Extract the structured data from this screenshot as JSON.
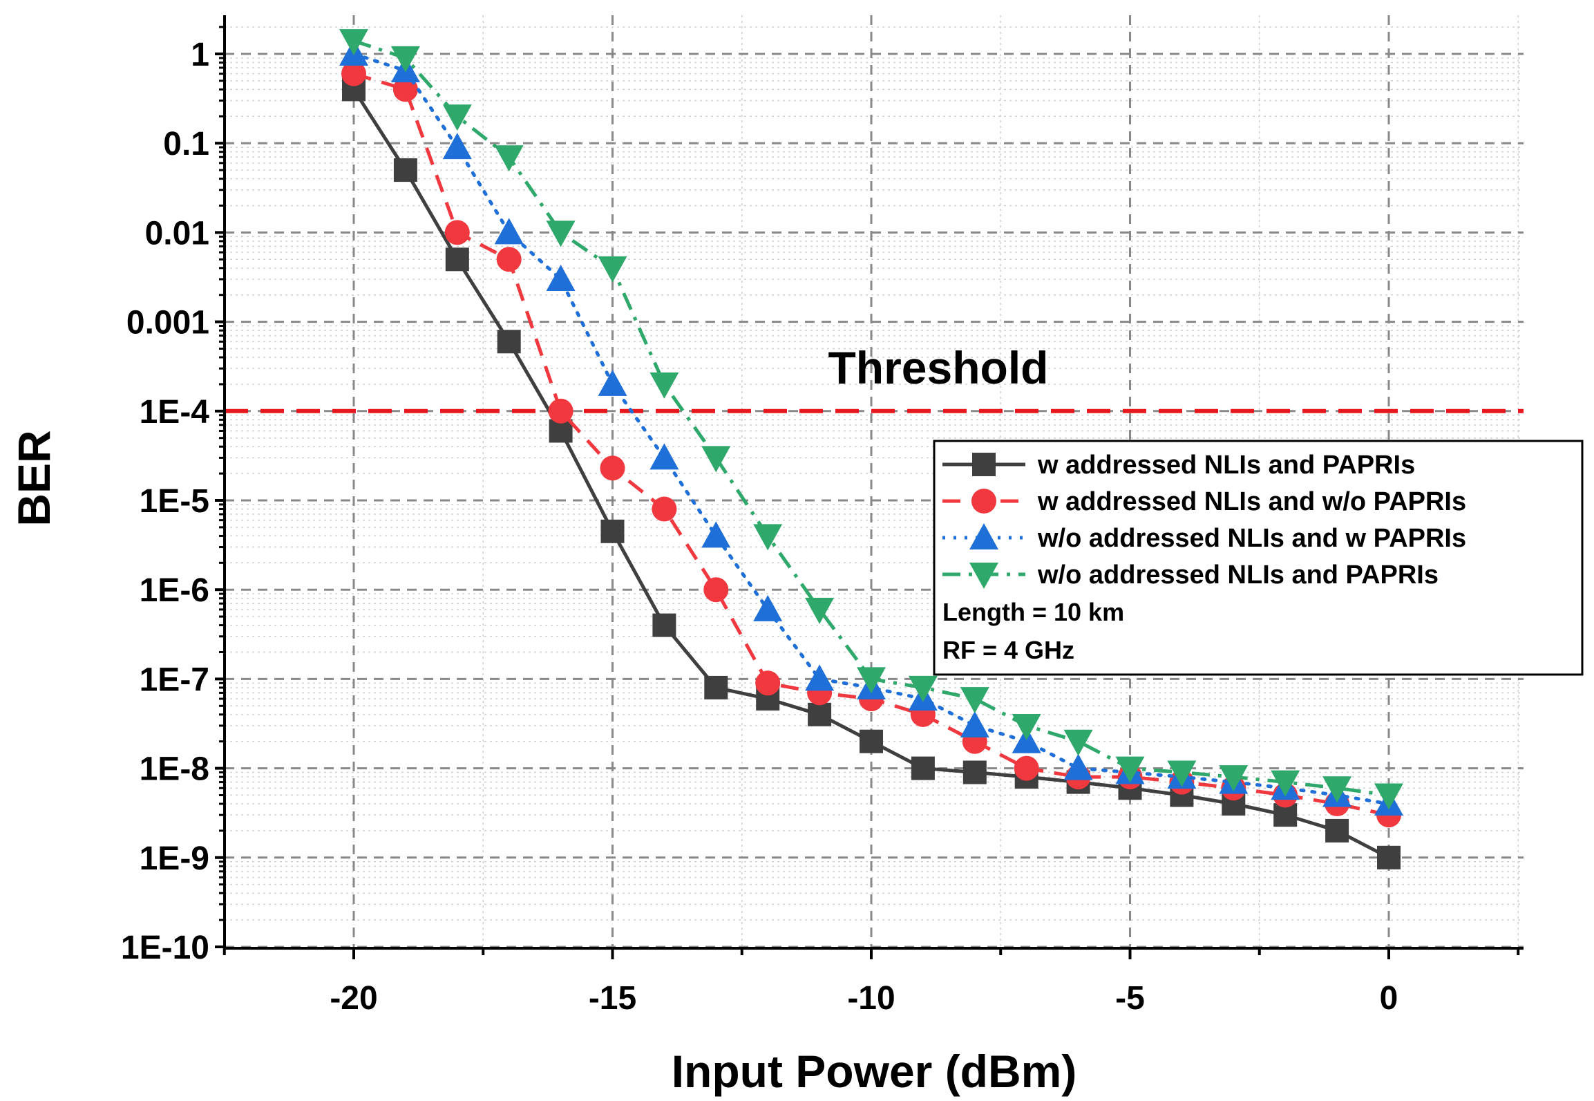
{
  "chart_data": {
    "type": "line",
    "title": "",
    "xlabel": "Input Power (dBm)",
    "ylabel": "BER",
    "yscale": "log",
    "xlim": [
      -22.5,
      2.5
    ],
    "ylim": [
      1e-10,
      3
    ],
    "x_ticks": [
      -20,
      -15,
      -10,
      -5,
      0
    ],
    "x_tick_labels": [
      "-20",
      "-15",
      "-10",
      "-5",
      "0"
    ],
    "y_ticks": [
      1,
      0.1,
      0.01,
      0.001,
      0.0001,
      1e-05,
      1e-06,
      1e-07,
      1e-08,
      1e-09,
      1e-10
    ],
    "y_tick_labels": [
      "1",
      "0.1",
      "0.01",
      "0.001",
      "1E-4",
      "1E-5",
      "1E-6",
      "1E-7",
      "1E-8",
      "1E-9",
      "1E-10"
    ],
    "grid": true,
    "x": [
      -20,
      -19,
      -18,
      -17,
      -16,
      -15,
      -14,
      -13,
      -12,
      -11,
      -10,
      -9,
      -8,
      -7,
      -6,
      -5,
      -4,
      -3,
      -2,
      -1,
      0
    ],
    "series": [
      {
        "name": "w addressed NLIs and PAPRIs",
        "color": "#3f3f3f",
        "marker": "square",
        "line": "solid",
        "values": [
          0.4,
          0.05,
          0.005,
          0.0006,
          6e-05,
          4.5e-06,
          4e-07,
          8e-08,
          6e-08,
          4e-08,
          2e-08,
          1e-08,
          9e-09,
          8e-09,
          7e-09,
          6e-09,
          5e-09,
          4e-09,
          3e-09,
          2e-09,
          1e-09
        ]
      },
      {
        "name": "w addressed NLIs and w/o PAPRIs",
        "color": "#f0383e",
        "marker": "circle",
        "line": "dashed",
        "values": [
          0.6,
          0.4,
          0.01,
          0.005,
          0.0001,
          2.3e-05,
          8e-06,
          1e-06,
          9e-08,
          7e-08,
          6e-08,
          4e-08,
          2e-08,
          1e-08,
          8e-09,
          8e-09,
          7e-09,
          6e-09,
          5e-09,
          4e-09,
          3e-09
        ]
      },
      {
        "name": "w/o addressed NLIs and w PAPRIs",
        "color": "#1f6fd8",
        "marker": "triangle-up",
        "line": "dotted",
        "values": [
          1.0,
          0.65,
          0.09,
          0.01,
          0.003,
          0.0002,
          3e-05,
          4e-06,
          6e-07,
          1e-07,
          8e-08,
          6e-08,
          3e-08,
          2e-08,
          1e-08,
          9e-09,
          8e-09,
          7e-09,
          6e-09,
          5e-09,
          4e-09
        ]
      },
      {
        "name": "w/o addressed NLIs and PAPRIs",
        "color": "#2ea86b",
        "marker": "triangle-down",
        "line": "dashdot",
        "values": [
          1.4,
          0.9,
          0.2,
          0.07,
          0.01,
          0.004,
          0.0002,
          3e-05,
          4e-06,
          6e-07,
          1e-07,
          8e-08,
          6e-08,
          3e-08,
          2e-08,
          1e-08,
          9e-09,
          8e-09,
          7e-09,
          6e-09,
          5e-09
        ]
      }
    ],
    "threshold": {
      "value": 0.0001,
      "color": "#e8181e",
      "label": "Threshold"
    },
    "legend_position": "middle-right",
    "annotations": [
      "Length = 10 km",
      "RF = 4 GHz"
    ]
  }
}
